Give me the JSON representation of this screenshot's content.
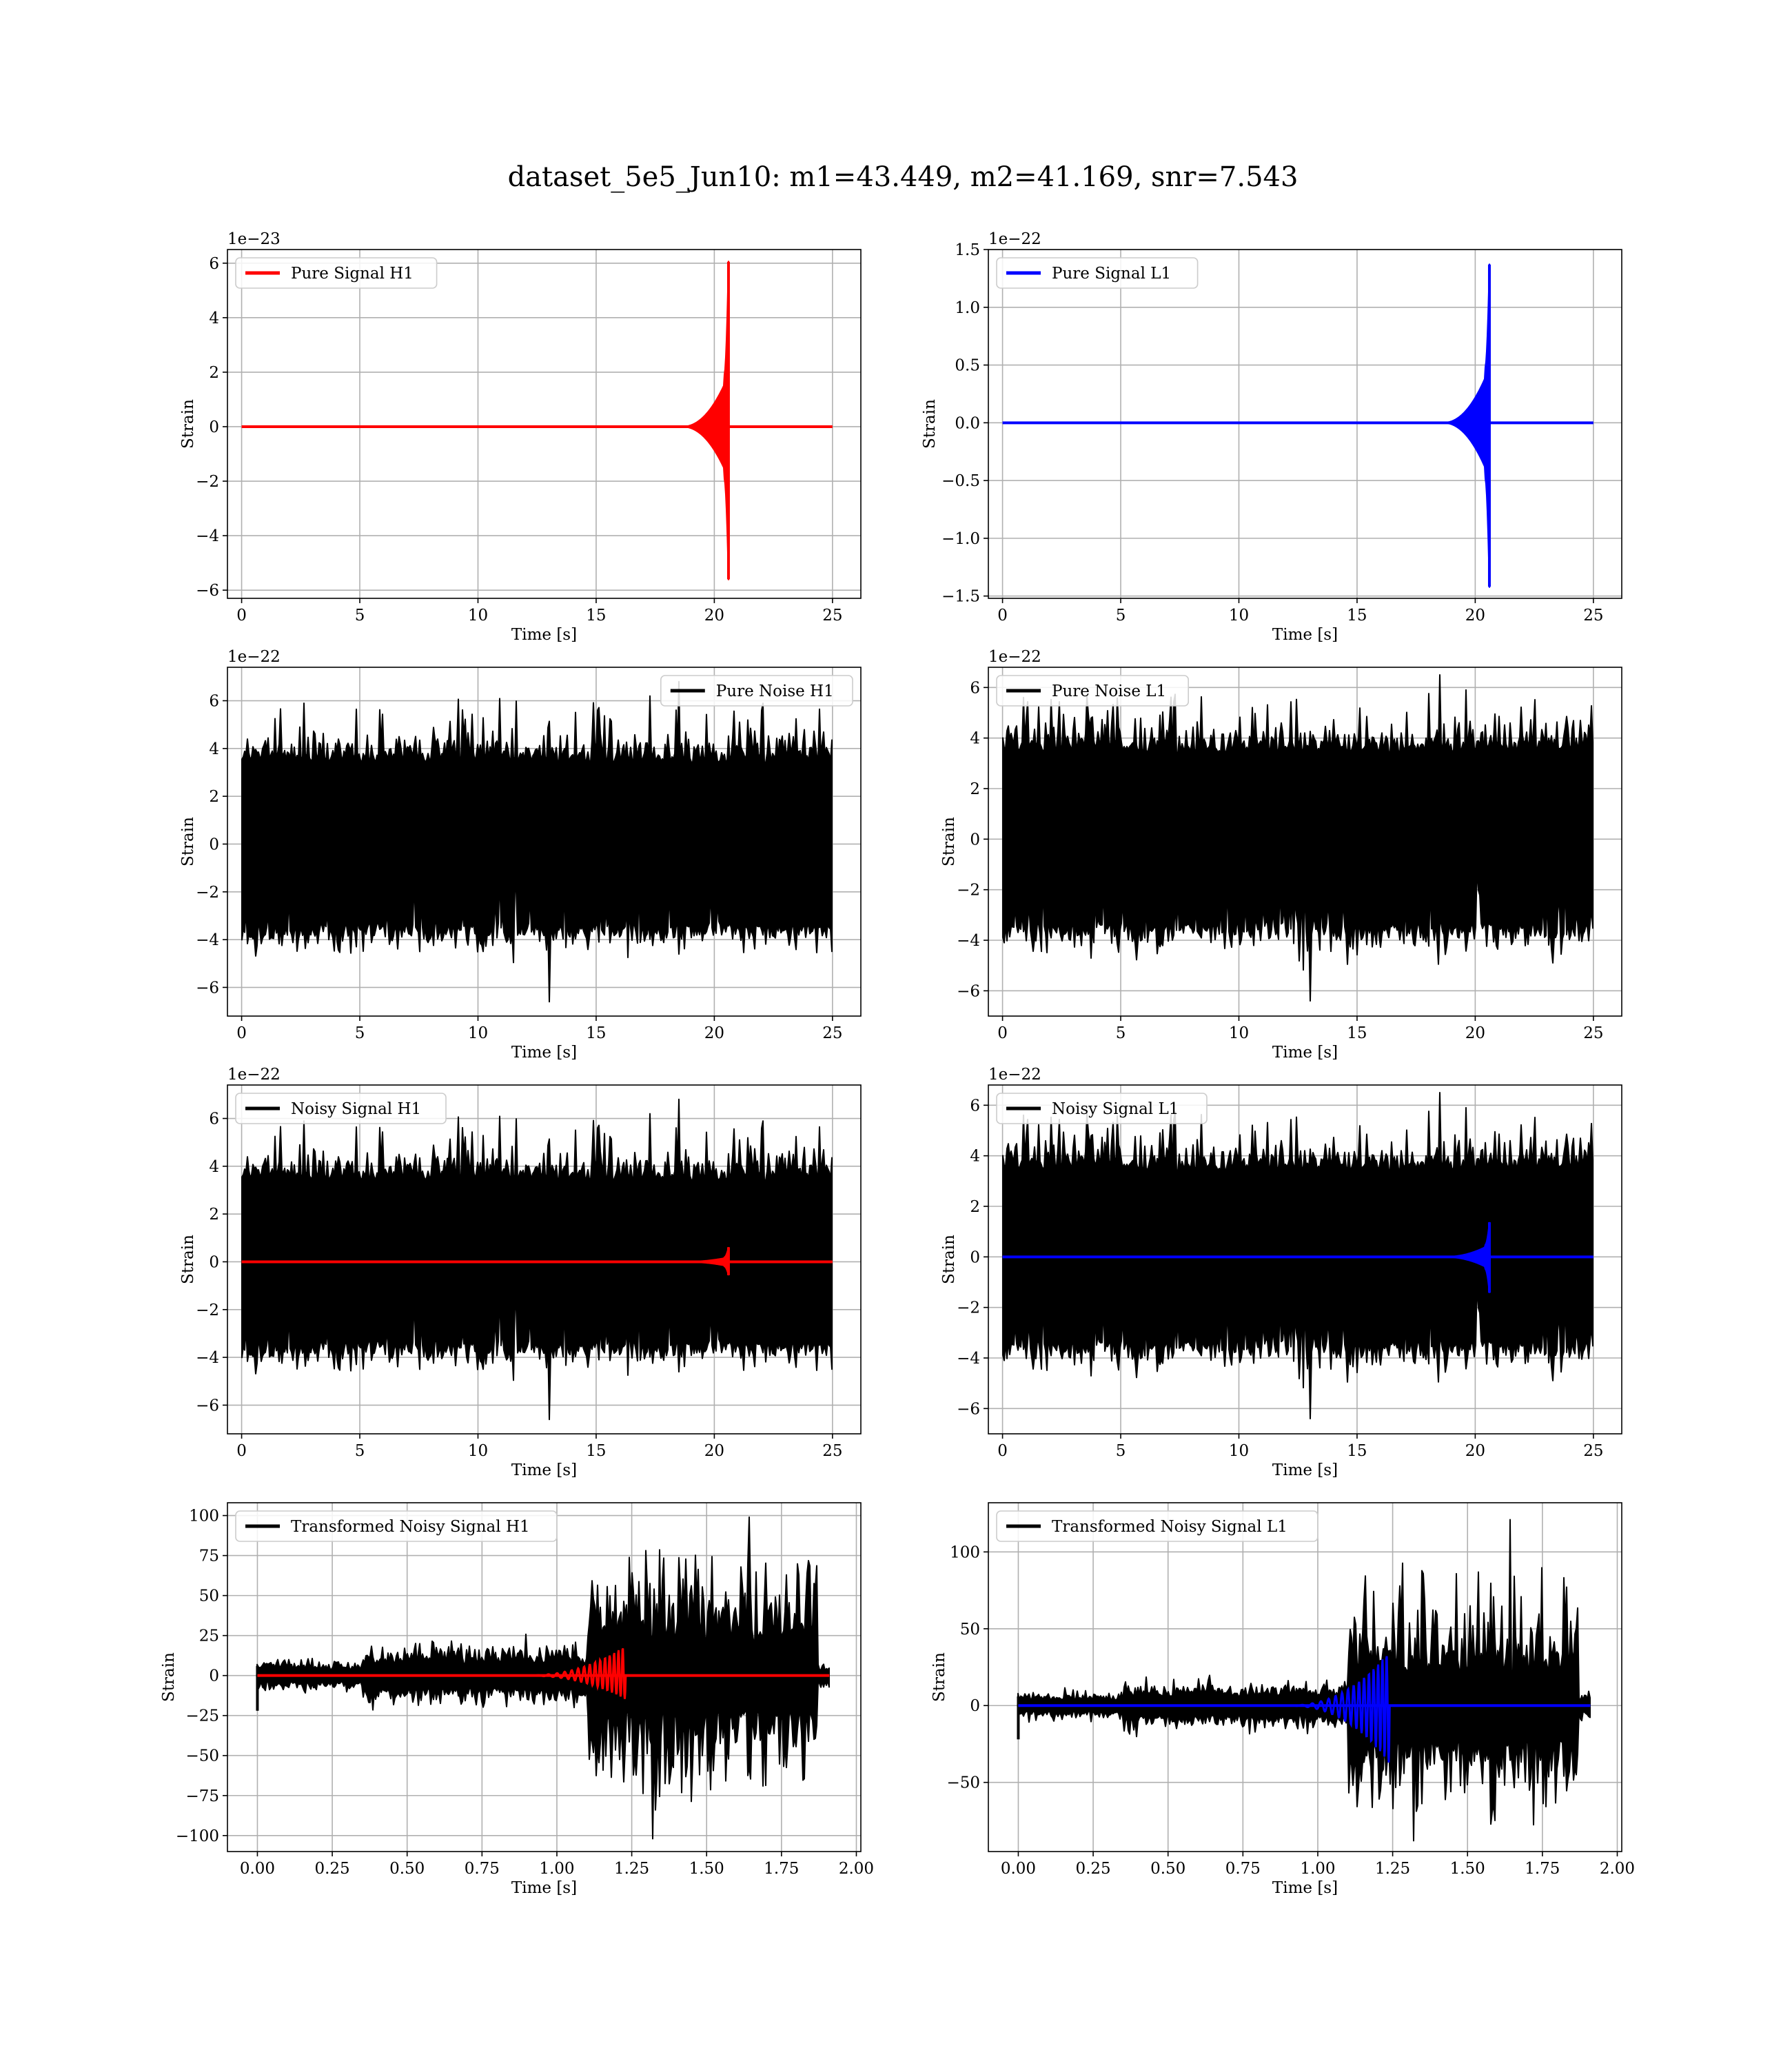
{
  "figure": {
    "title": "dataset_5e5_Jun10: m1=43.449, m2=41.169, snr=7.543"
  },
  "chart_data": [
    {
      "type": "line",
      "legend": [
        "Pure Signal H1"
      ],
      "legend_position": "upper left",
      "xlabel": "Time [s]",
      "ylabel": "Strain",
      "y_offset_label": "1e−23",
      "xlim": [
        -0.6,
        26.2
      ],
      "ylim": [
        -6.3,
        6.5
      ],
      "xticks": [
        0,
        5,
        10,
        15,
        20,
        25
      ],
      "xtick_labels": [
        "0",
        "5",
        "10",
        "15",
        "20",
        "25"
      ],
      "yticks": [
        -6,
        -4,
        -2,
        0,
        2,
        4,
        6
      ],
      "ytick_labels": [
        "−6",
        "−4",
        "−2",
        "0",
        "2",
        "4",
        "6"
      ],
      "grid": true,
      "series": [
        {
          "name": "Pure Signal H1",
          "color": "#ff0000",
          "kind": "chirp",
          "t_start": 0,
          "t_merge": 20.6,
          "t_end": 25,
          "envelope_early": 1.9,
          "peak_max": 6.05,
          "peak_min": -5.6
        }
      ]
    },
    {
      "type": "line",
      "legend": [
        "Pure Signal L1"
      ],
      "legend_position": "upper left",
      "xlabel": "Time [s]",
      "ylabel": "Strain",
      "y_offset_label": "1e−22",
      "xlim": [
        -0.6,
        26.2
      ],
      "ylim": [
        -1.52,
        1.5
      ],
      "xticks": [
        0,
        5,
        10,
        15,
        20,
        25
      ],
      "xtick_labels": [
        "0",
        "5",
        "10",
        "15",
        "20",
        "25"
      ],
      "yticks": [
        -1.5,
        -1.0,
        -0.5,
        0.0,
        0.5,
        1.0,
        1.5
      ],
      "ytick_labels": [
        "−1.5",
        "−1.0",
        "−0.5",
        "0.0",
        "0.5",
        "1.0",
        "1.5"
      ],
      "grid": true,
      "series": [
        {
          "name": "Pure Signal L1",
          "color": "#0000ff",
          "kind": "chirp",
          "t_start": 0,
          "t_merge": 20.6,
          "t_end": 25,
          "envelope_early": 0.48,
          "peak_max": 1.37,
          "peak_min": -1.42
        }
      ]
    },
    {
      "type": "line",
      "legend": [
        "Pure Noise H1"
      ],
      "legend_position": "upper right",
      "xlabel": "Time [s]",
      "ylabel": "Strain",
      "y_offset_label": "1e−22",
      "xlim": [
        -0.6,
        26.2
      ],
      "ylim": [
        -7.2,
        7.4
      ],
      "xticks": [
        0,
        5,
        10,
        15,
        20,
        25
      ],
      "xtick_labels": [
        "0",
        "5",
        "10",
        "15",
        "20",
        "25"
      ],
      "yticks": [
        -6,
        -4,
        -2,
        0,
        2,
        4,
        6
      ],
      "ytick_labels": [
        "−6",
        "−4",
        "−2",
        "0",
        "2",
        "4",
        "6"
      ],
      "grid": true,
      "series": [
        {
          "name": "Pure Noise H1",
          "color": "#000000",
          "kind": "noise",
          "t_start": 0,
          "t_end": 25,
          "peak_max": 6.8,
          "peak_min": -6.6,
          "seed": 11
        }
      ]
    },
    {
      "type": "line",
      "legend": [
        "Pure Noise L1"
      ],
      "legend_position": "upper left",
      "xlabel": "Time [s]",
      "ylabel": "Strain",
      "y_offset_label": "1e−22",
      "xlim": [
        -0.6,
        26.2
      ],
      "ylim": [
        -7.0,
        6.8
      ],
      "xticks": [
        0,
        5,
        10,
        15,
        20,
        25
      ],
      "xtick_labels": [
        "0",
        "5",
        "10",
        "15",
        "20",
        "25"
      ],
      "yticks": [
        -6,
        -4,
        -2,
        0,
        2,
        4,
        6
      ],
      "ytick_labels": [
        "−6",
        "−4",
        "−2",
        "0",
        "2",
        "4",
        "6"
      ],
      "grid": true,
      "series": [
        {
          "name": "Pure Noise L1",
          "color": "#000000",
          "kind": "noise",
          "t_start": 0,
          "t_end": 25,
          "peak_max": 6.5,
          "peak_min": -6.4,
          "seed": 23
        }
      ]
    },
    {
      "type": "line",
      "legend": [
        "Noisy Signal H1"
      ],
      "legend_position": "upper left",
      "xlabel": "Time [s]",
      "ylabel": "Strain",
      "y_offset_label": "1e−22",
      "xlim": [
        -0.6,
        26.2
      ],
      "ylim": [
        -7.2,
        7.4
      ],
      "xticks": [
        0,
        5,
        10,
        15,
        20,
        25
      ],
      "xtick_labels": [
        "0",
        "5",
        "10",
        "15",
        "20",
        "25"
      ],
      "yticks": [
        -6,
        -4,
        -2,
        0,
        2,
        4,
        6
      ],
      "ytick_labels": [
        "−6",
        "−4",
        "−2",
        "0",
        "2",
        "4",
        "6"
      ],
      "grid": true,
      "series": [
        {
          "name": "Noisy Signal H1",
          "color": "#000000",
          "kind": "noise",
          "t_start": 0,
          "t_end": 25,
          "peak_max": 6.8,
          "peak_min": -6.6,
          "seed": 11
        },
        {
          "color": "#ff0000",
          "kind": "chirp",
          "t_start": 0,
          "t_merge": 20.6,
          "t_end": 25,
          "envelope_early": 0.19,
          "peak_max": 0.61,
          "peak_min": -0.56
        }
      ]
    },
    {
      "type": "line",
      "legend": [
        "Noisy Signal L1"
      ],
      "legend_position": "upper left",
      "xlabel": "Time [s]",
      "ylabel": "Strain",
      "y_offset_label": "1e−22",
      "xlim": [
        -0.6,
        26.2
      ],
      "ylim": [
        -7.0,
        6.8
      ],
      "xticks": [
        0,
        5,
        10,
        15,
        20,
        25
      ],
      "xtick_labels": [
        "0",
        "5",
        "10",
        "15",
        "20",
        "25"
      ],
      "yticks": [
        -6,
        -4,
        -2,
        0,
        2,
        4,
        6
      ],
      "ytick_labels": [
        "−6",
        "−4",
        "−2",
        "0",
        "2",
        "4",
        "6"
      ],
      "grid": true,
      "series": [
        {
          "name": "Noisy Signal L1",
          "color": "#000000",
          "kind": "noise",
          "t_start": 0,
          "t_end": 25,
          "peak_max": 6.5,
          "peak_min": -6.4,
          "seed": 23
        },
        {
          "color": "#0000ff",
          "kind": "chirp",
          "t_start": 0,
          "t_merge": 20.6,
          "t_end": 25,
          "envelope_early": 0.48,
          "peak_max": 1.37,
          "peak_min": -1.42
        }
      ]
    },
    {
      "type": "line",
      "legend": [
        "Transformed Noisy Signal H1"
      ],
      "legend_position": "upper left",
      "xlabel": "Time [s]",
      "ylabel": "Strain",
      "y_offset_label": "",
      "xlim": [
        -0.1,
        2.015
      ],
      "ylim": [
        -110,
        108
      ],
      "xticks": [
        0.0,
        0.25,
        0.5,
        0.75,
        1.0,
        1.25,
        1.5,
        1.75,
        2.0
      ],
      "xtick_labels": [
        "0.00",
        "0.25",
        "0.50",
        "0.75",
        "1.00",
        "1.25",
        "1.50",
        "1.75",
        "2.00"
      ],
      "yticks": [
        -100,
        -75,
        -50,
        -25,
        0,
        25,
        50,
        75,
        100
      ],
      "ytick_labels": [
        "−100",
        "−75",
        "−50",
        "−25",
        "0",
        "25",
        "50",
        "75",
        "100"
      ],
      "grid": true,
      "series": [
        {
          "name": "Transformed Noisy Signal H1",
          "color": "#000000",
          "kind": "whitened",
          "t_start": 0,
          "t_jump": 1.1,
          "t_end": 1.91,
          "t_drop": 1.87,
          "amp_early": 6,
          "amp_mid": 12,
          "peak_max": 99,
          "peak_min": -102,
          "seed": 37
        },
        {
          "color": "#ff0000",
          "kind": "whitened-chirp",
          "t_start": 0,
          "t_merge": 1.23,
          "t_end": 1.91,
          "peak_max": 19,
          "peak_min": -15
        }
      ]
    },
    {
      "type": "line",
      "legend": [
        "Transformed Noisy Signal L1"
      ],
      "legend_position": "upper left",
      "xlabel": "Time [s]",
      "ylabel": "Strain",
      "y_offset_label": "",
      "xlim": [
        -0.1,
        2.015
      ],
      "ylim": [
        -95,
        132
      ],
      "xticks": [
        0.0,
        0.25,
        0.5,
        0.75,
        1.0,
        1.25,
        1.5,
        1.75,
        2.0
      ],
      "xtick_labels": [
        "0.00",
        "0.25",
        "0.50",
        "0.75",
        "1.00",
        "1.25",
        "1.50",
        "1.75",
        "2.00"
      ],
      "yticks": [
        -50,
        0,
        50,
        100
      ],
      "ytick_labels": [
        "−50",
        "0",
        "50",
        "100"
      ],
      "grid": true,
      "series": [
        {
          "name": "Transformed Noisy Signal L1",
          "color": "#000000",
          "kind": "whitened",
          "t_start": 0,
          "t_jump": 1.1,
          "t_end": 1.91,
          "t_drop": 1.87,
          "amp_early": 6,
          "amp_mid": 10,
          "peak_max": 121,
          "peak_min": -88,
          "seed": 53
        },
        {
          "color": "#0000ff",
          "kind": "whitened-chirp",
          "t_start": 0,
          "t_merge": 1.24,
          "t_end": 1.91,
          "peak_max": 36,
          "peak_min": -38
        }
      ]
    }
  ]
}
